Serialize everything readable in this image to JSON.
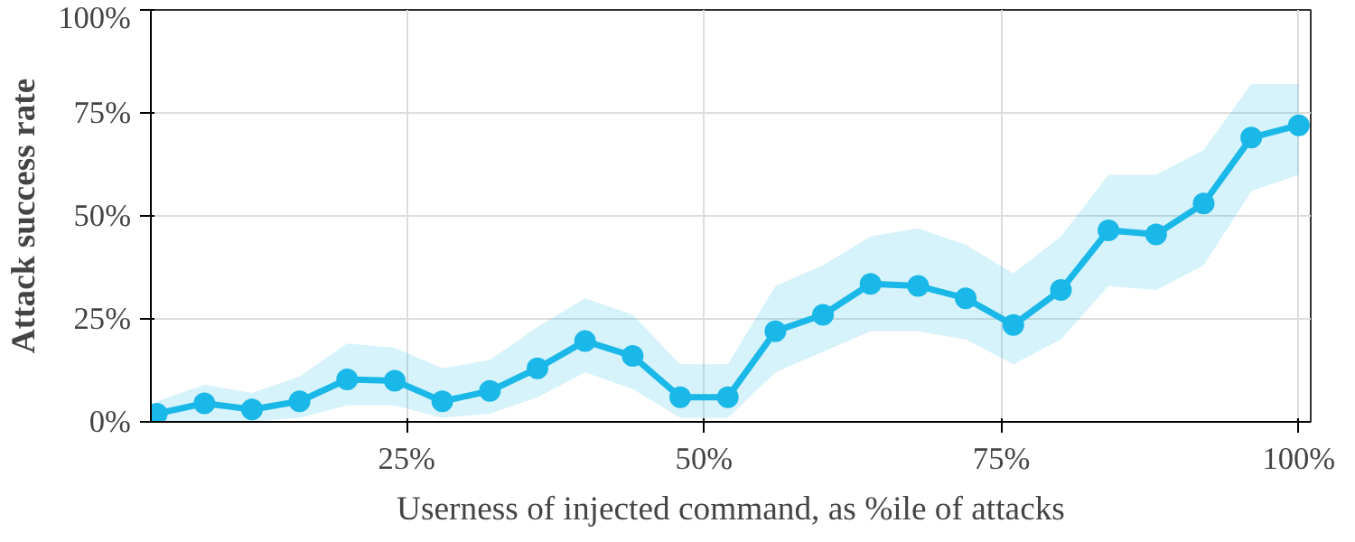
{
  "chart_data": {
    "type": "line",
    "xlabel": "Userness of injected command, as %ile of attacks",
    "ylabel": "Attack success rate",
    "x": [
      4,
      8,
      12,
      16,
      20,
      24,
      28,
      32,
      36,
      40,
      44,
      48,
      52,
      56,
      60,
      64,
      68,
      72,
      76,
      80,
      84,
      88,
      92,
      96,
      100
    ],
    "series": [
      {
        "color": "#1ab8e8",
        "values": [
          2,
          4.5,
          3,
          5,
          10.3,
          10,
          5,
          7.5,
          13,
          19.6,
          16,
          6,
          6,
          22,
          26,
          33.5,
          33,
          30,
          23.5,
          32,
          46.5,
          45.5,
          53,
          69,
          72
        ],
        "lower": [
          0,
          0,
          0,
          1,
          4,
          4,
          1,
          2,
          6,
          12,
          8,
          1,
          1,
          12,
          17,
          22,
          22,
          20,
          14,
          20,
          33,
          32,
          38,
          56,
          60
        ],
        "upper": [
          5,
          9,
          7,
          11,
          19,
          18,
          13,
          15,
          23,
          30,
          26,
          14,
          14,
          33,
          38,
          45,
          47,
          43,
          36,
          45,
          60,
          60,
          66,
          82,
          82
        ]
      }
    ],
    "xlim": [
      3.5,
      101
    ],
    "ylim": [
      0,
      100
    ],
    "xticks": [
      {
        "value": 25,
        "label": "25%"
      },
      {
        "value": 50,
        "label": "50%"
      },
      {
        "value": 75,
        "label": "75%"
      },
      {
        "value": 100,
        "label": "100%"
      }
    ],
    "yticks": [
      {
        "value": 0,
        "label": "0%"
      },
      {
        "value": 25,
        "label": "25%"
      },
      {
        "value": 50,
        "label": "50%"
      },
      {
        "value": 75,
        "label": "75%"
      },
      {
        "value": 100,
        "label": "100%"
      }
    ],
    "grid": true,
    "marker": "circle",
    "line_style": "solid"
  }
}
